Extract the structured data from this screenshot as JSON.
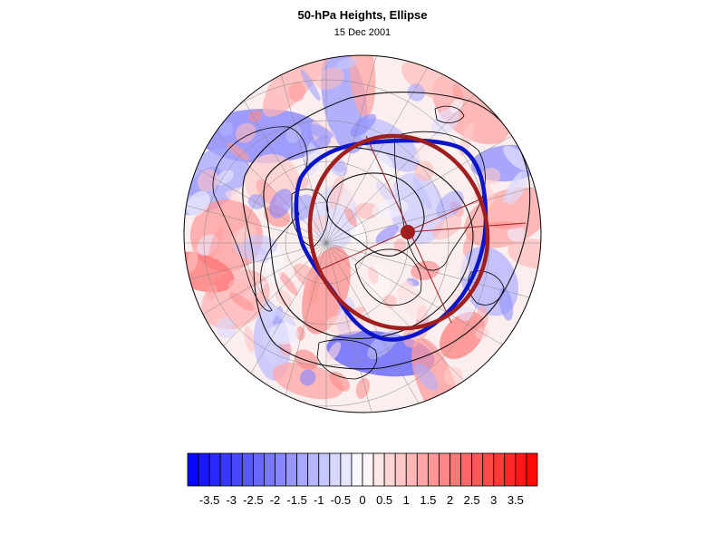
{
  "title": "50-hPa Heights, Ellipse",
  "subtitle": "15 Dec 2001",
  "colorbar": {
    "min": -4,
    "max": 4,
    "step": 0.25,
    "tick_labels": [
      "-3.5",
      "-3",
      "-2.5",
      "-2",
      "-1.5",
      "-1",
      "-0.5",
      "0",
      "0.5",
      "1",
      "1.5",
      "2",
      "2.5",
      "3",
      "3.5"
    ],
    "colors": {
      "negative_max": "#0000ff",
      "neutral": "#ffffff",
      "positive_max": "#ff0000"
    }
  },
  "map": {
    "projection": "polar-orthographic",
    "field": "50-hPa height anomaly",
    "features": [
      "coastlines",
      "lat-lon graticule",
      "black contour lines",
      "blue height contour",
      "red fitted ellipse",
      "ellipse axes"
    ],
    "colors": {
      "contour_blue": "#0a14c8",
      "ellipse_red": "#a01e1e",
      "axes_red": "#a01e1e",
      "coast": "#000000",
      "graticule": "#888888"
    }
  }
}
